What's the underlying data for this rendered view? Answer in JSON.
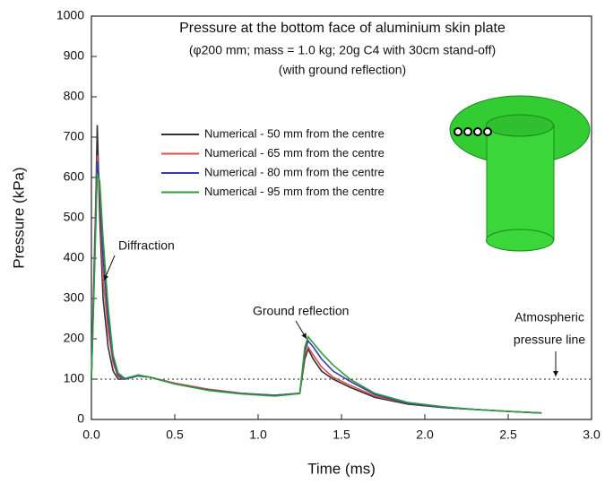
{
  "chart_data": {
    "type": "line",
    "title": "Pressure at the bottom face of aluminium skin plate",
    "subtitle": [
      "(φ200 mm; mass = 1.0 kg; 20g C4 with 30cm stand-off)",
      "(with ground reflection)"
    ],
    "x_label": "Time (ms)",
    "y_label": "Pressure (kPa)",
    "x": [
      0,
      0.02,
      0.035,
      0.05,
      0.07,
      0.1,
      0.13,
      0.16,
      0.2,
      0.28,
      0.35,
      0.5,
      0.7,
      0.9,
      1.1,
      1.25,
      1.28,
      1.3,
      1.33,
      1.38,
      1.45,
      1.55,
      1.7,
      1.9,
      2.1,
      2.3,
      2.5,
      2.7
    ],
    "series": [
      {
        "name": "Numerical - 50 mm from the centre",
        "color": "#333333",
        "values": [
          100,
          400,
          730,
          500,
          300,
          180,
          120,
          100,
          100,
          110,
          105,
          90,
          75,
          65,
          60,
          65,
          150,
          175,
          150,
          120,
          100,
          80,
          55,
          38,
          30,
          25,
          20,
          16
        ]
      },
      {
        "name": "Numerical - 65 mm from the centre",
        "color": "#d9534f",
        "values": [
          100,
          450,
          655,
          560,
          350,
          220,
          140,
          105,
          100,
          108,
          105,
          90,
          75,
          65,
          60,
          65,
          160,
          180,
          160,
          130,
          105,
          85,
          58,
          40,
          30,
          25,
          20,
          16
        ]
      },
      {
        "name": "Numerical - 80 mm from the centre",
        "color": "#3a3ab0",
        "values": [
          100,
          420,
          640,
          580,
          400,
          250,
          150,
          110,
          100,
          108,
          105,
          88,
          73,
          64,
          60,
          65,
          170,
          195,
          180,
          150,
          120,
          95,
          62,
          40,
          30,
          25,
          20,
          16
        ]
      },
      {
        "name": "Numerical - 95 mm from the centre",
        "color": "#2e9e3a",
        "values": [
          100,
          380,
          610,
          590,
          450,
          280,
          160,
          115,
          102,
          110,
          105,
          88,
          72,
          63,
          58,
          64,
          180,
          205,
          190,
          165,
          135,
          100,
          65,
          42,
          32,
          25,
          20,
          16
        ]
      }
    ],
    "xlim": [
      0,
      3.0
    ],
    "xticks": [
      {
        "value": 0,
        "label": "0.0"
      },
      {
        "value": 0.5,
        "label": "0.5"
      },
      {
        "value": 1.0,
        "label": "1.0"
      },
      {
        "value": 1.5,
        "label": "1.5"
      },
      {
        "value": 2.0,
        "label": "2.0"
      },
      {
        "value": 2.5,
        "label": "2.5"
      },
      {
        "value": 3.0,
        "label": "3.0"
      }
    ],
    "ylim": [
      0,
      1000
    ],
    "yticks": [
      0,
      100,
      200,
      300,
      400,
      500,
      600,
      700,
      800,
      900,
      1000
    ],
    "reference_line": 100,
    "annotations": [
      {
        "lines": [
          "Diffraction"
        ]
      },
      {
        "lines": [
          "Ground reflection"
        ]
      },
      {
        "lines": [
          "Atmospheric",
          "pressure line"
        ]
      }
    ],
    "legend": "upper center",
    "grid": false
  }
}
